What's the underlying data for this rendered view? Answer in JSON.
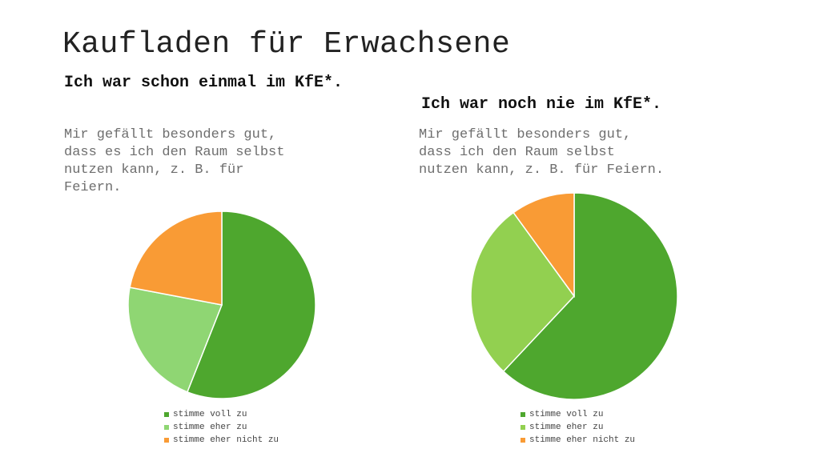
{
  "title": "Kaufladen für Erwachsene",
  "left": {
    "heading": "Ich war schon einmal im KfE*.",
    "statement": "Mir gefällt besonders gut,\ndass es ich den Raum selbst\nnutzen kann, z. B. für\nFeiern."
  },
  "right": {
    "heading": "Ich war noch nie im KfE*.",
    "statement": "Mir gefällt besonders gut,\ndass ich den Raum selbst\nnutzen kann, z. B. für Feiern."
  },
  "chart_data": [
    {
      "type": "pie",
      "categories": [
        "stimme voll zu",
        "stimme eher zu",
        "stimme eher nicht zu"
      ],
      "values": [
        56,
        22,
        22
      ],
      "colors": [
        "#4ea72e",
        "#8fd673",
        "#f99b35"
      ],
      "legend_position": "bottom"
    },
    {
      "type": "pie",
      "categories": [
        "stimme voll zu",
        "stimme eher zu",
        "stimme eher nicht zu"
      ],
      "values": [
        62,
        28,
        10
      ],
      "colors": [
        "#4ea72e",
        "#92d050",
        "#f99b35"
      ],
      "legend_position": "bottom"
    }
  ]
}
